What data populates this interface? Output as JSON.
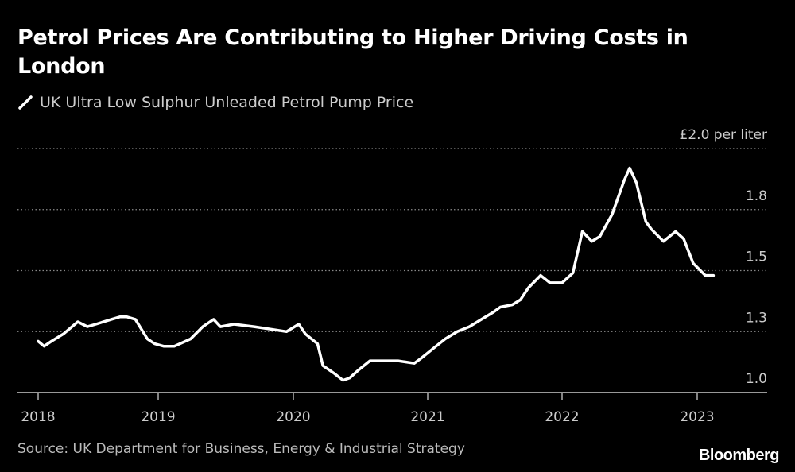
{
  "chart_data": {
    "type": "line",
    "title": "Petrol Prices Are Contributing to Higher Driving Costs in London",
    "legend": [
      "UK Ultra Low Sulphur Unleaded Petrol Pump Price"
    ],
    "ylabel": "£ per liter",
    "ylim": [
      1.0,
      2.0
    ],
    "yticks": [
      1.0,
      1.25,
      1.5,
      1.75,
      2.0
    ],
    "ytick_labels": [
      "1.0",
      "1.3",
      "1.5",
      "1.8",
      "£2.0 per liter"
    ],
    "xticks": [
      2018,
      2019,
      2020,
      2021,
      2022,
      2023
    ],
    "xtick_labels": [
      "2018",
      "2019",
      "2020",
      "2021",
      "2022",
      "2023"
    ],
    "grid": "horizontal dotted",
    "line_color": "#ffffff",
    "series": [
      {
        "name": "UK Ultra Low Sulphur Unleaded Petrol Pump Price",
        "x": [
          2018.0,
          2018.05,
          2018.11,
          2018.21,
          2018.33,
          2018.41,
          2018.48,
          2018.61,
          2018.68,
          2018.74,
          2018.81,
          2018.91,
          2018.97,
          2019.04,
          2019.12,
          2019.24,
          2019.33,
          2019.41,
          2019.46,
          2019.56,
          2019.71,
          2019.83,
          2019.95,
          2020.04,
          2020.09,
          2020.18,
          2020.22,
          2020.3,
          2020.37,
          2020.42,
          2020.48,
          2020.57,
          2020.66,
          2020.78,
          2020.9,
          2020.95,
          2021.04,
          2021.13,
          2021.22,
          2021.31,
          2021.4,
          2021.49,
          2021.54,
          2021.63,
          2021.69,
          2021.75,
          2021.84,
          2021.91,
          2022.0,
          2022.08,
          2022.15,
          2022.22,
          2022.28,
          2022.37,
          2022.46,
          2022.5,
          2022.55,
          2022.62,
          2022.66,
          2022.75,
          2022.84,
          2022.9,
          2022.97,
          2023.06,
          2023.12
        ],
        "values": [
          1.21,
          1.19,
          1.21,
          1.24,
          1.29,
          1.27,
          1.28,
          1.3,
          1.31,
          1.31,
          1.3,
          1.22,
          1.2,
          1.19,
          1.19,
          1.22,
          1.27,
          1.3,
          1.27,
          1.28,
          1.27,
          1.26,
          1.25,
          1.28,
          1.24,
          1.2,
          1.11,
          1.08,
          1.05,
          1.06,
          1.09,
          1.13,
          1.13,
          1.13,
          1.12,
          1.14,
          1.18,
          1.22,
          1.25,
          1.27,
          1.3,
          1.33,
          1.35,
          1.36,
          1.38,
          1.43,
          1.48,
          1.45,
          1.45,
          1.49,
          1.66,
          1.62,
          1.64,
          1.73,
          1.87,
          1.92,
          1.86,
          1.7,
          1.67,
          1.62,
          1.66,
          1.63,
          1.53,
          1.48,
          1.48
        ]
      }
    ]
  },
  "source": "Source: UK Department for Business, Energy & Industrial Strategy",
  "logo": "Bloomberg"
}
